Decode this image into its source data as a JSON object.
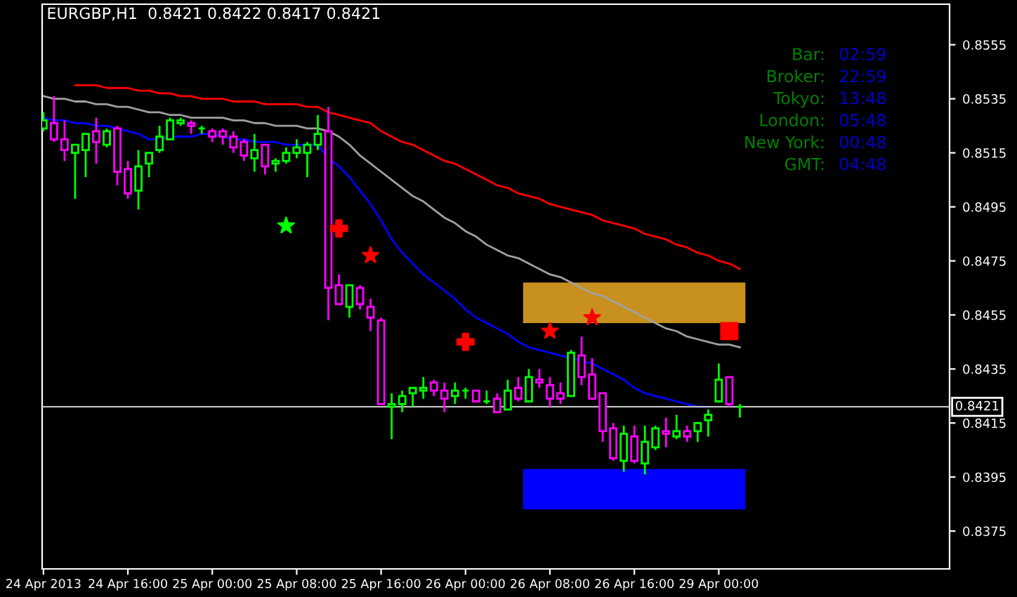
{
  "chart_data": {
    "type": "candlestick",
    "title": "EURGBP,H1  0.8421 0.8422 0.8417 0.8421",
    "categories": [
      "24 Apr 2013",
      null,
      null,
      null,
      null,
      null,
      null,
      null,
      "24 Apr 16:00",
      null,
      null,
      null,
      null,
      null,
      null,
      null,
      "25 Apr 00:00",
      null,
      null,
      null,
      null,
      null,
      null,
      null,
      "25 Apr 08:00",
      null,
      null,
      null,
      null,
      null,
      null,
      null,
      "25 Apr 16:00",
      null,
      null,
      null,
      null,
      null,
      null,
      null,
      "26 Apr 00:00",
      null,
      null,
      null,
      null,
      null,
      null,
      null,
      "26 Apr 08:00",
      null,
      null,
      null,
      null,
      null,
      null,
      null,
      "26 Apr 16:00",
      null,
      null,
      null,
      null,
      null,
      null,
      null,
      "29 Apr 00:00",
      null,
      null
    ],
    "ohlc": [
      [
        0.8524,
        0.853,
        0.8523,
        0.8527
      ],
      [
        0.8526,
        0.8536,
        0.8519,
        0.852
      ],
      [
        0.852,
        0.8527,
        0.8512,
        0.8516
      ],
      [
        0.8515,
        0.8518,
        0.8498,
        0.8518
      ],
      [
        0.8516,
        0.8522,
        0.8506,
        0.8522
      ],
      [
        0.8523,
        0.8528,
        0.8511,
        0.8519
      ],
      [
        0.8518,
        0.8524,
        0.8517,
        0.8523
      ],
      [
        0.8524,
        0.8525,
        0.8503,
        0.8508
      ],
      [
        0.8509,
        0.8512,
        0.8498,
        0.85
      ],
      [
        0.8501,
        0.8516,
        0.8494,
        0.851
      ],
      [
        0.8511,
        0.8515,
        0.8506,
        0.8515
      ],
      [
        0.8516,
        0.8525,
        0.8515,
        0.8521
      ],
      [
        0.852,
        0.8528,
        0.852,
        0.8527
      ],
      [
        0.8526,
        0.8528,
        0.8525,
        0.8527
      ],
      [
        0.8526,
        0.8527,
        0.8522,
        0.8525
      ],
      [
        0.8524,
        0.8525,
        0.8522,
        0.8524
      ],
      [
        0.8523,
        0.8524,
        0.8519,
        0.8521
      ],
      [
        0.8523,
        0.8524,
        0.8518,
        0.8521
      ],
      [
        0.8521,
        0.8523,
        0.8515,
        0.8517
      ],
      [
        0.8519,
        0.852,
        0.8512,
        0.8514
      ],
      [
        0.8513,
        0.8522,
        0.8508,
        0.8516
      ],
      [
        0.8518,
        0.8518,
        0.8507,
        0.851
      ],
      [
        0.8511,
        0.8513,
        0.8508,
        0.8512
      ],
      [
        0.8512,
        0.8517,
        0.8511,
        0.8515
      ],
      [
        0.8515,
        0.852,
        0.8513,
        0.8517
      ],
      [
        0.8515,
        0.8519,
        0.8506,
        0.8518
      ],
      [
        0.8518,
        0.8529,
        0.8516,
        0.8522
      ],
      [
        0.8523,
        0.8532,
        0.8453,
        0.8465
      ],
      [
        0.8466,
        0.847,
        0.8459,
        0.8459
      ],
      [
        0.8458,
        0.8466,
        0.8454,
        0.8466
      ],
      [
        0.8465,
        0.8466,
        0.8457,
        0.8459
      ],
      [
        0.8458,
        0.8461,
        0.8449,
        0.8454
      ],
      [
        0.8453,
        0.8454,
        0.8422,
        0.8422
      ],
      [
        0.8421,
        0.8426,
        0.8409,
        0.8422
      ],
      [
        0.8422,
        0.8427,
        0.8419,
        0.8425
      ],
      [
        0.8426,
        0.8428,
        0.8421,
        0.8428
      ],
      [
        0.8427,
        0.8432,
        0.8424,
        0.8428
      ],
      [
        0.843,
        0.8431,
        0.8425,
        0.8427
      ],
      [
        0.8427,
        0.843,
        0.8419,
        0.8424
      ],
      [
        0.8425,
        0.843,
        0.8422,
        0.8427
      ],
      [
        0.8427,
        0.8428,
        0.8424,
        0.8427
      ],
      [
        0.8427,
        0.8427,
        0.8423,
        0.8423
      ],
      [
        0.8423,
        0.8427,
        0.8422,
        0.8423
      ],
      [
        0.8424,
        0.8426,
        0.8419,
        0.8419
      ],
      [
        0.842,
        0.8431,
        0.842,
        0.8427
      ],
      [
        0.8428,
        0.8432,
        0.8423,
        0.8424
      ],
      [
        0.8423,
        0.8435,
        0.8423,
        0.8432
      ],
      [
        0.8431,
        0.8435,
        0.8428,
        0.843
      ],
      [
        0.8429,
        0.8432,
        0.8421,
        0.8424
      ],
      [
        0.8426,
        0.843,
        0.8422,
        0.8424
      ],
      [
        0.8425,
        0.8442,
        0.8425,
        0.8441
      ],
      [
        0.844,
        0.8447,
        0.8429,
        0.8432
      ],
      [
        0.8433,
        0.8439,
        0.8424,
        0.8424
      ],
      [
        0.8426,
        0.8426,
        0.8408,
        0.8412
      ],
      [
        0.8413,
        0.8415,
        0.8401,
        0.8402
      ],
      [
        0.8401,
        0.8414,
        0.8397,
        0.8411
      ],
      [
        0.841,
        0.8414,
        0.84,
        0.8401
      ],
      [
        0.84,
        0.8414,
        0.8396,
        0.8408
      ],
      [
        0.8406,
        0.8414,
        0.8405,
        0.8413
      ],
      [
        0.8412,
        0.8417,
        0.8406,
        0.8411
      ],
      [
        0.841,
        0.8418,
        0.8409,
        0.8412
      ],
      [
        0.8412,
        0.8414,
        0.8408,
        0.841
      ],
      [
        0.8412,
        0.8415,
        0.8408,
        0.8415
      ],
      [
        0.8416,
        0.842,
        0.841,
        0.8418
      ],
      [
        0.8423,
        0.8437,
        0.8423,
        0.8431
      ],
      [
        0.8432,
        0.8432,
        0.8421,
        0.8422
      ],
      [
        0.8421,
        0.8422,
        0.8417,
        0.8421
      ]
    ],
    "colors": [
      "#00ff00",
      "#ff00ff",
      "#ff00ff",
      "#00ff00",
      "#00ff00",
      "#ff00ff",
      "#00ff00",
      "#ff00ff",
      "#ff00ff",
      "#00ff00",
      "#00ff00",
      "#00ff00",
      "#00ff00",
      "#00ff00",
      "#ff00ff",
      "#00ff00",
      "#ff00ff",
      "#ff00ff",
      "#ff00ff",
      "#ff00ff",
      "#00ff00",
      "#ff00ff",
      "#00ff00",
      "#00ff00",
      "#00ff00",
      "#00ff00",
      "#00ff00",
      "#ff00ff",
      "#ff00ff",
      "#00ff00",
      "#ff00ff",
      "#ff00ff",
      "#ff00ff",
      "#00ff00",
      "#00ff00",
      "#00ff00",
      "#00ff00",
      "#ff00ff",
      "#ff00ff",
      "#00ff00",
      "#00ff00",
      "#ff00ff",
      "#00ff00",
      "#ff00ff",
      "#00ff00",
      "#ff00ff",
      "#00ff00",
      "#ff00ff",
      "#ff00ff",
      "#ff00ff",
      "#00ff00",
      "#ff00ff",
      "#ff00ff",
      "#ff00ff",
      "#ff00ff",
      "#00ff00",
      "#ff00ff",
      "#00ff00",
      "#00ff00",
      "#ff00ff",
      "#00ff00",
      "#ff00ff",
      "#00ff00",
      "#00ff00",
      "#00ff00",
      "#ff00ff",
      "#00ff00"
    ],
    "series": [
      {
        "type": "line",
        "color": "#ff0000",
        "values": [
          null,
          null,
          null,
          0.854,
          0.854,
          0.854,
          0.8539,
          0.8539,
          0.8539,
          0.8538,
          0.8538,
          0.8537,
          0.8537,
          0.8536,
          0.8536,
          0.8535,
          0.8535,
          0.8535,
          0.8534,
          0.8534,
          0.8534,
          0.8533,
          0.8533,
          0.8533,
          0.8533,
          0.8532,
          0.8532,
          0.853,
          0.8529,
          0.8528,
          0.8527,
          0.8526,
          0.8523,
          0.8521,
          0.8519,
          0.8518,
          0.8516,
          0.8514,
          0.8512,
          0.8511,
          0.8509,
          0.8507,
          0.8505,
          0.8503,
          0.8502,
          0.85,
          0.8499,
          0.8498,
          0.8496,
          0.8495,
          0.8494,
          0.8493,
          0.8492,
          0.849,
          0.8489,
          0.8488,
          0.8487,
          0.8485,
          0.8484,
          0.8483,
          0.8481,
          0.848,
          0.8478,
          0.8477,
          0.8475,
          0.8474,
          0.8472
        ]
      },
      {
        "type": "line",
        "color": "#a0a0a0",
        "values": [
          0.8536,
          0.8535,
          0.8535,
          0.8534,
          0.8534,
          0.8533,
          0.8533,
          0.8532,
          0.8532,
          0.8531,
          0.853,
          0.853,
          0.8529,
          0.8529,
          0.8528,
          0.8528,
          0.8528,
          0.8528,
          0.8527,
          0.8527,
          0.8526,
          0.8526,
          0.8525,
          0.8525,
          0.8525,
          0.8524,
          0.8524,
          0.8523,
          0.8521,
          0.8518,
          0.8514,
          0.8511,
          0.8508,
          0.8505,
          0.8502,
          0.8499,
          0.8497,
          0.8494,
          0.8491,
          0.8489,
          0.8486,
          0.8484,
          0.8481,
          0.8479,
          0.8477,
          0.8476,
          0.8474,
          0.8472,
          0.847,
          0.8469,
          0.8467,
          0.8465,
          0.8463,
          0.8462,
          0.846,
          0.8458,
          0.8456,
          0.8454,
          0.8452,
          0.845,
          0.8449,
          0.8447,
          0.8446,
          0.8445,
          0.8444,
          0.8444,
          0.8443
        ]
      },
      {
        "type": "line",
        "color": "#0000ff",
        "values": [
          0.8528,
          0.8527,
          0.8527,
          0.8526,
          0.8526,
          0.8525,
          0.8525,
          0.8524,
          0.8523,
          0.8522,
          0.852,
          0.852,
          0.8521,
          0.8521,
          0.8521,
          0.8522,
          0.8522,
          0.8521,
          0.852,
          0.852,
          0.8519,
          0.8519,
          0.8519,
          0.8518,
          0.8518,
          0.8518,
          0.8518,
          0.8513,
          0.851,
          0.8506,
          0.8501,
          0.8496,
          0.849,
          0.8483,
          0.8478,
          0.8474,
          0.847,
          0.8467,
          0.8464,
          0.8461,
          0.8457,
          0.8454,
          0.8452,
          0.845,
          0.8448,
          0.8445,
          0.8443,
          0.8442,
          0.8441,
          0.844,
          0.8439,
          0.8438,
          0.8437,
          0.8435,
          0.8433,
          0.8431,
          0.8428,
          0.8426,
          0.8425,
          0.8424,
          0.8423,
          0.8422,
          0.8421,
          0.8421,
          null,
          null,
          null
        ]
      },
      {
        "type": "scatter",
        "marker": "star",
        "color": "#00ff00",
        "values": [
          null,
          null,
          null,
          null,
          null,
          null,
          null,
          null,
          null,
          null,
          null,
          null,
          null,
          null,
          null,
          null,
          null,
          null,
          null,
          null,
          null,
          null,
          null,
          0.8488,
          null,
          null,
          null,
          null,
          null,
          null,
          null,
          null,
          null,
          null,
          null,
          null,
          null,
          null,
          null,
          null,
          null,
          null,
          null,
          null,
          null,
          null,
          null,
          null,
          null,
          null,
          null,
          null,
          null,
          null,
          null,
          null,
          null,
          null,
          null,
          null,
          null,
          null,
          null,
          null,
          null,
          null,
          null
        ]
      },
      {
        "type": "scatter",
        "marker": "star",
        "color": "#ff0000",
        "values": [
          null,
          null,
          null,
          null,
          null,
          null,
          null,
          null,
          null,
          null,
          null,
          null,
          null,
          null,
          null,
          null,
          null,
          null,
          null,
          null,
          null,
          null,
          null,
          null,
          null,
          null,
          null,
          null,
          null,
          null,
          null,
          0.8477,
          null,
          null,
          null,
          null,
          null,
          null,
          null,
          null,
          null,
          null,
          null,
          null,
          null,
          null,
          null,
          null,
          0.8449,
          null,
          null,
          null,
          0.8454,
          null,
          null,
          null,
          null,
          null,
          null,
          null,
          null,
          null,
          null,
          null,
          null,
          null,
          null
        ]
      },
      {
        "type": "scatter",
        "marker": "cross",
        "color": "#ff0000",
        "values": [
          null,
          null,
          null,
          null,
          null,
          null,
          null,
          null,
          null,
          null,
          null,
          null,
          null,
          null,
          null,
          null,
          null,
          null,
          null,
          null,
          null,
          null,
          null,
          null,
          null,
          null,
          null,
          null,
          0.8487,
          null,
          null,
          null,
          null,
          null,
          null,
          null,
          null,
          null,
          null,
          null,
          0.8445,
          null,
          null,
          null,
          null,
          null,
          null,
          null,
          null,
          null,
          null,
          null,
          null,
          null,
          null,
          null,
          null,
          null,
          null,
          null,
          null,
          null,
          null,
          null,
          null,
          null,
          null
        ]
      },
      {
        "type": "scatter",
        "marker": "square",
        "color": "#ff0000",
        "values": [
          null,
          null,
          null,
          null,
          null,
          null,
          null,
          null,
          null,
          null,
          null,
          null,
          null,
          null,
          null,
          null,
          null,
          null,
          null,
          null,
          null,
          null,
          null,
          null,
          null,
          null,
          null,
          null,
          null,
          null,
          null,
          null,
          null,
          null,
          null,
          null,
          null,
          null,
          null,
          null,
          null,
          null,
          null,
          null,
          null,
          null,
          null,
          null,
          null,
          null,
          null,
          null,
          null,
          null,
          null,
          null,
          null,
          null,
          null,
          null,
          null,
          null,
          null,
          null,
          null,
          0.8449,
          null
        ]
      }
    ],
    "ylim": [
      0.8361,
      0.857
    ],
    "yticks": [
      0.8375,
      0.8395,
      0.8415,
      0.8435,
      0.8455,
      0.8475,
      0.8495,
      0.8515,
      0.8535,
      0.8555
    ],
    "bands": [
      {
        "axis": "y",
        "from": 0.8452,
        "to": 0.8467,
        "color": "#c8901e"
      },
      {
        "axis": "y",
        "from": 0.8383,
        "to": 0.8398,
        "color": "#0000ff"
      }
    ],
    "ref_lines": [
      {
        "axis": "y",
        "value": 0.8421,
        "label": "0.8421",
        "color": "#c0c0c0"
      }
    ],
    "annotations": [
      "Bar:",
      "02:59",
      "Broker:",
      "22:59",
      "Tokyo:",
      "13:48",
      "London:",
      "05:48",
      "New York:",
      "00:48",
      "GMT:",
      "04:48"
    ]
  }
}
